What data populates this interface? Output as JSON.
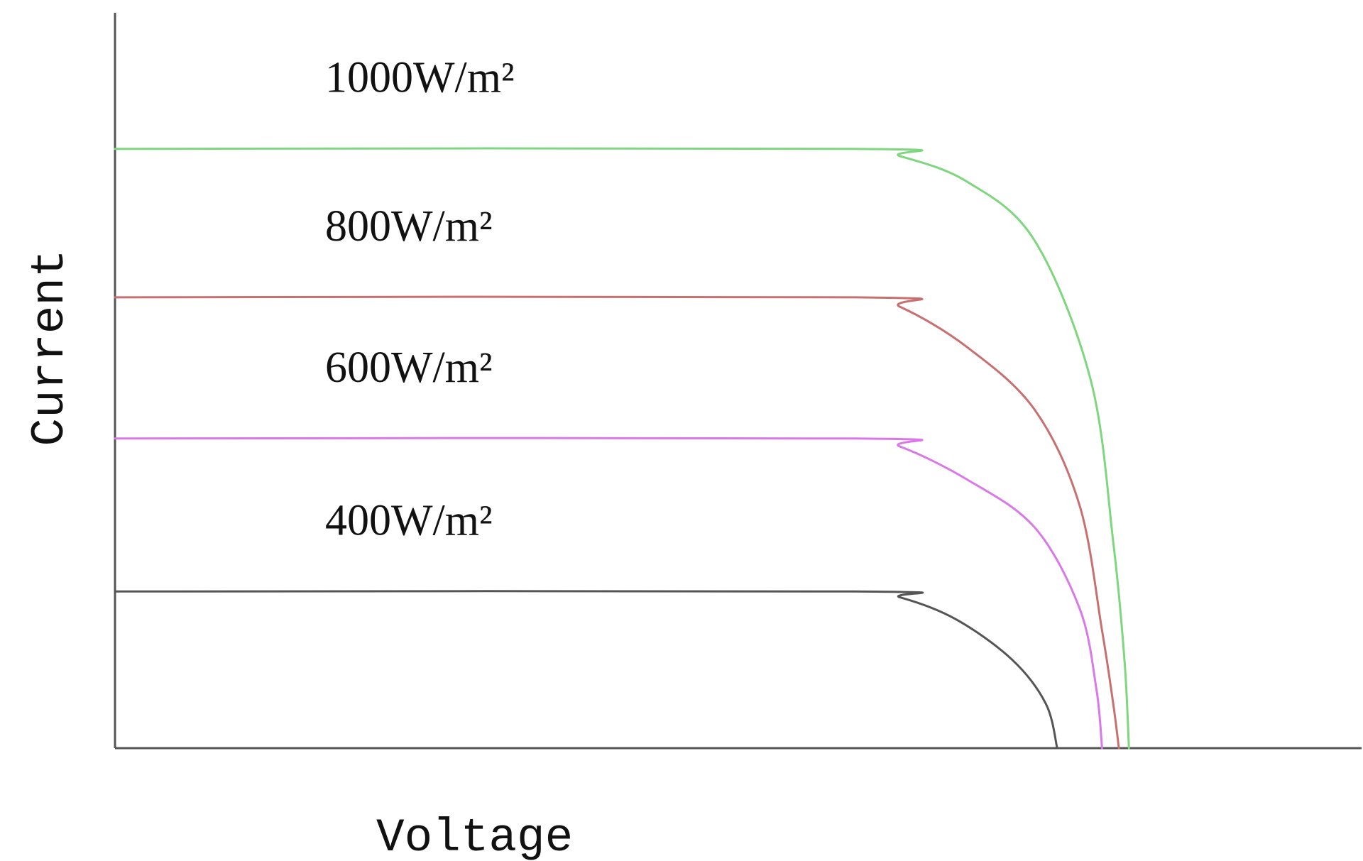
{
  "chart_data": {
    "type": "line",
    "title": "",
    "xlabel": "Voltage",
    "ylabel": "Current",
    "xlim": [
      0,
      100
    ],
    "ylim": [
      0,
      100
    ],
    "grid": false,
    "legend": "inline-labels",
    "series": [
      {
        "name": "1000W/m²",
        "color": "#7ed67e",
        "points": [
          [
            0,
            81.5
          ],
          [
            66,
            81.5
          ],
          [
            70,
            80.5
          ],
          [
            76,
            77
          ],
          [
            82,
            69
          ],
          [
            87,
            50
          ],
          [
            89,
            28
          ],
          [
            90,
            12
          ],
          [
            90.4,
            0
          ]
        ]
      },
      {
        "name": "800W/m²",
        "color": "#c87070",
        "points": [
          [
            0,
            61.3
          ],
          [
            66,
            61.3
          ],
          [
            70,
            60
          ],
          [
            76,
            54.5
          ],
          [
            82,
            46
          ],
          [
            86,
            33
          ],
          [
            88,
            16
          ],
          [
            89,
            6
          ],
          [
            89.5,
            0
          ]
        ]
      },
      {
        "name": "600W/m²",
        "color": "#d979e8",
        "points": [
          [
            0,
            42.1
          ],
          [
            66,
            42.1
          ],
          [
            70,
            41
          ],
          [
            76,
            36.5
          ],
          [
            82,
            30
          ],
          [
            86,
            19
          ],
          [
            87.5,
            8
          ],
          [
            88,
            0
          ]
        ]
      },
      {
        "name": "400W/m²",
        "color": "#555555",
        "points": [
          [
            0,
            21.3
          ],
          [
            66,
            21.3
          ],
          [
            70,
            20.5
          ],
          [
            75,
            17.5
          ],
          [
            80,
            12
          ],
          [
            83,
            6
          ],
          [
            84,
            0
          ]
        ]
      }
    ]
  }
}
